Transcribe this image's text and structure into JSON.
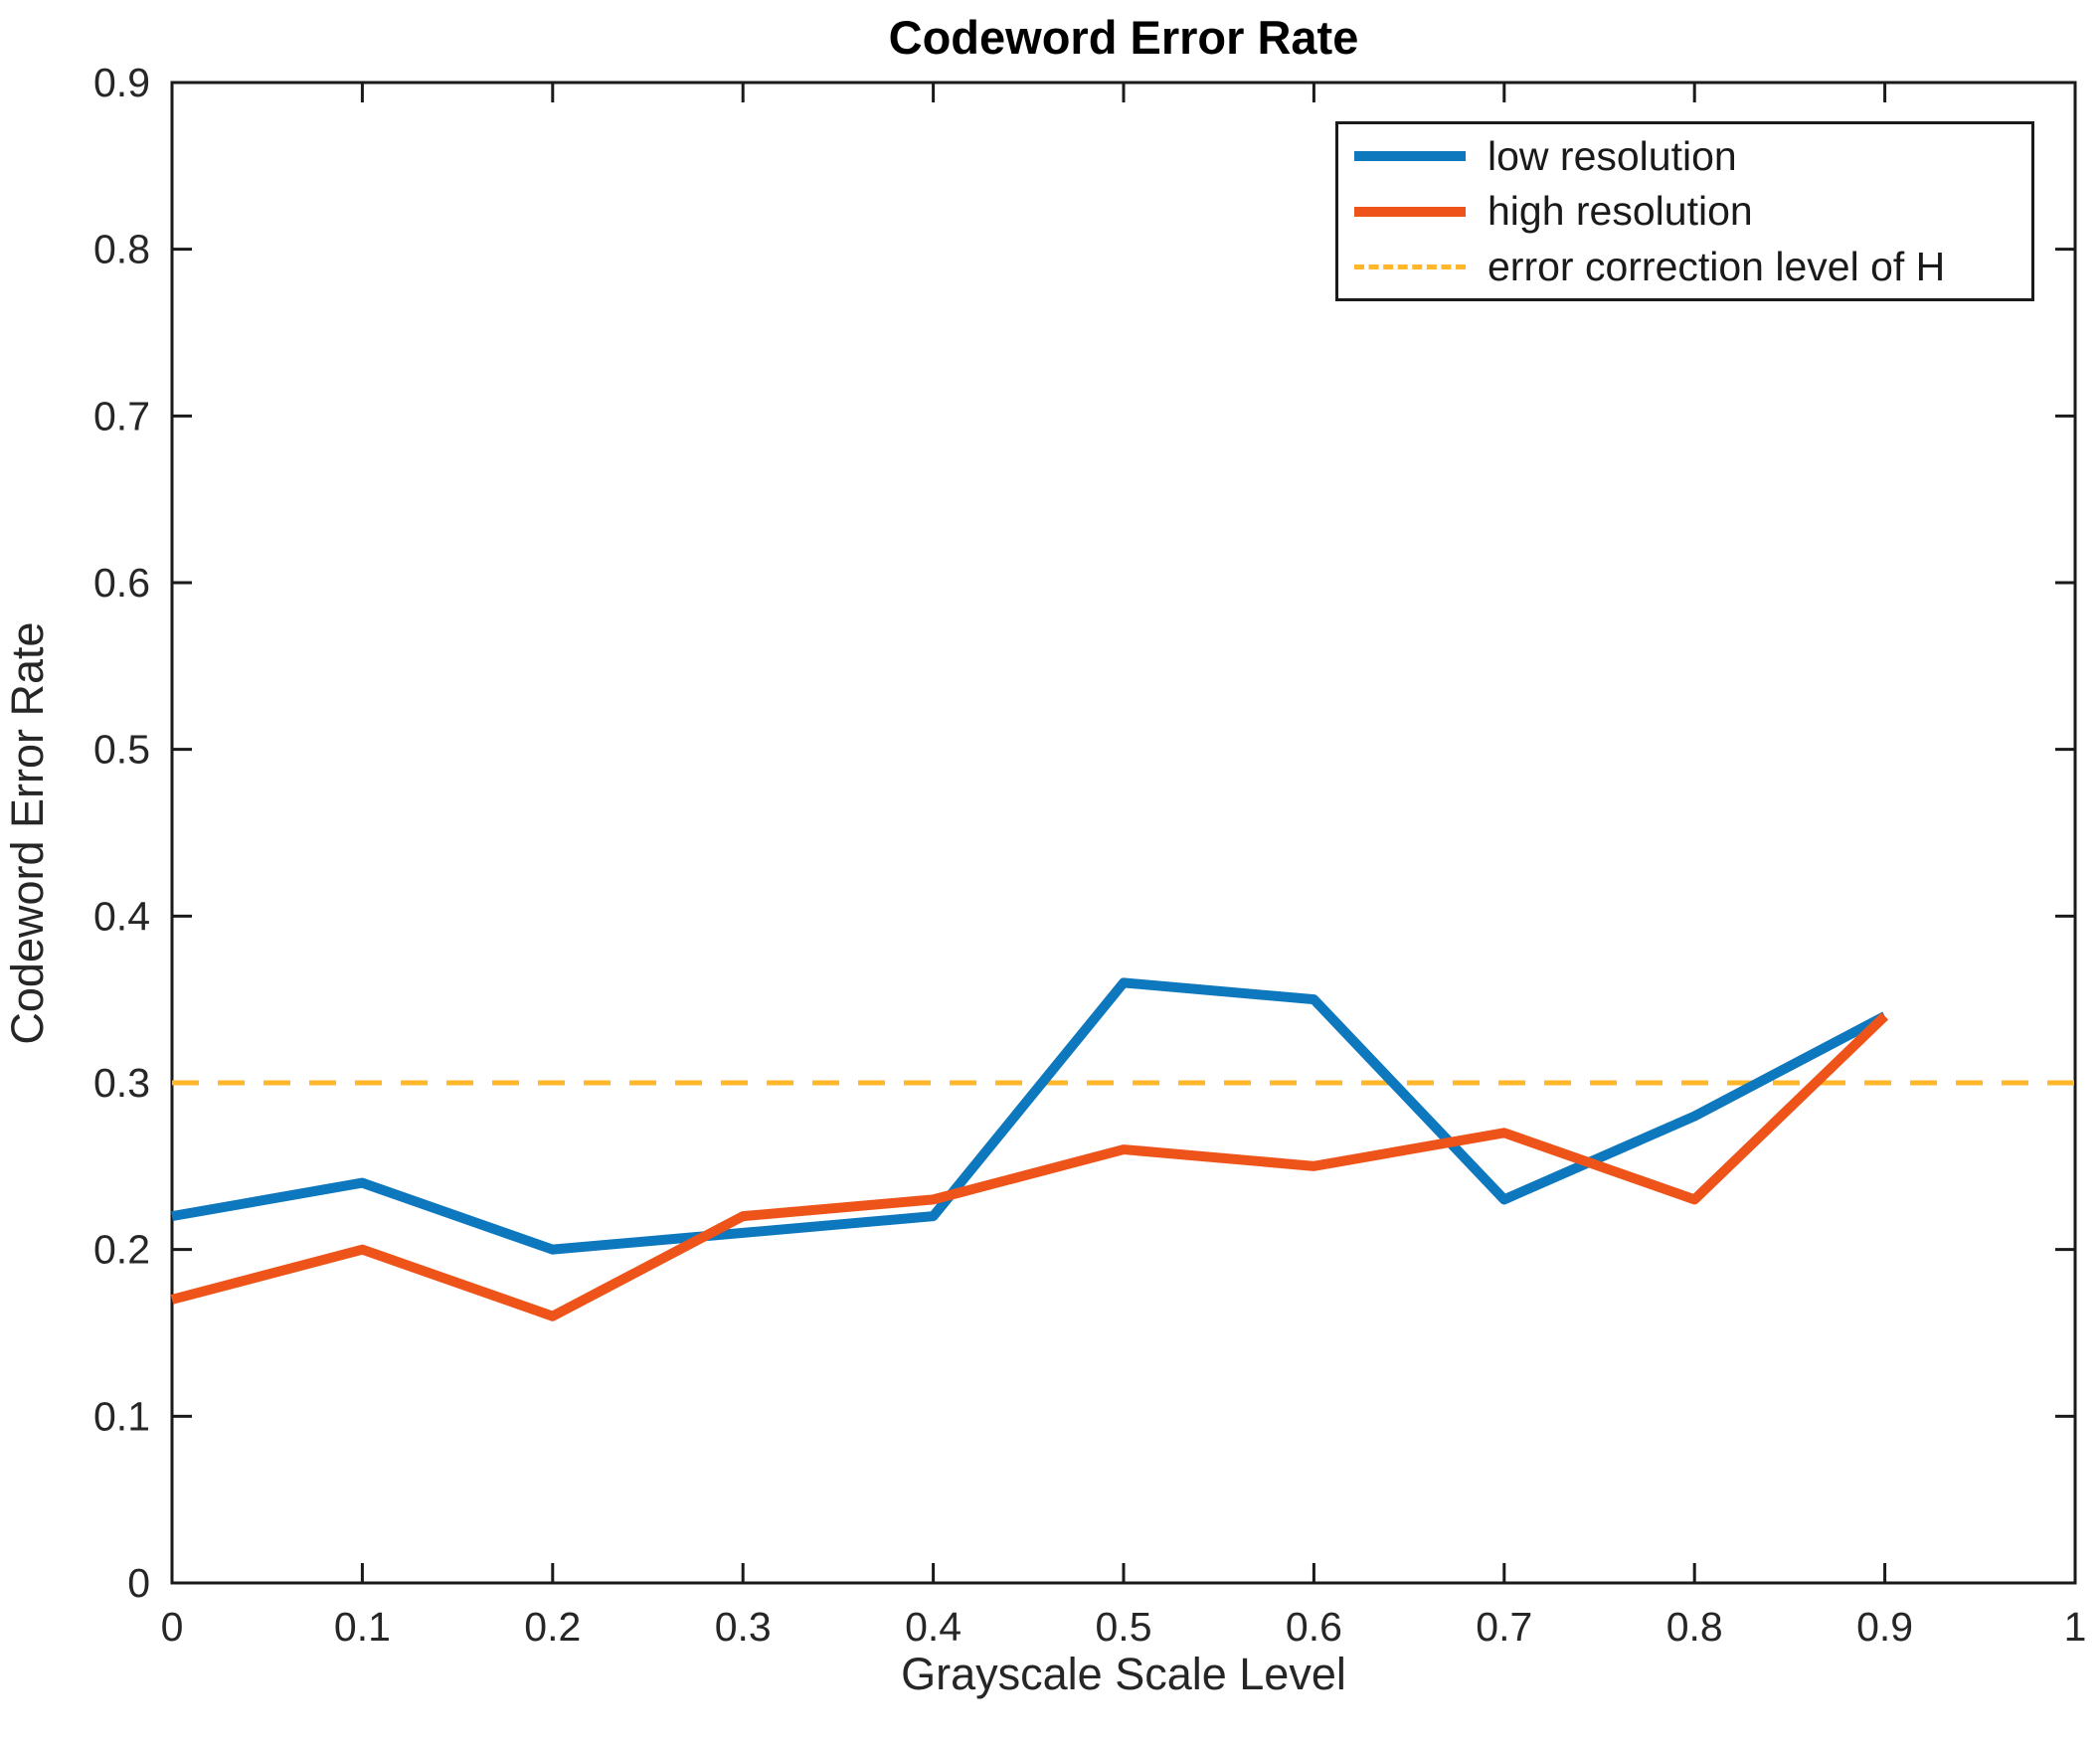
{
  "chart_data": {
    "type": "line",
    "title": "Codeword Error Rate",
    "xlabel": "Grayscale Scale Level",
    "ylabel": "Codeword Error Rate",
    "xlim": [
      0,
      1
    ],
    "ylim": [
      0,
      0.9
    ],
    "grid": false,
    "legend_position": "top-right",
    "x_ticks": [
      0,
      0.1,
      0.2,
      0.3,
      0.4,
      0.5,
      0.6,
      0.7,
      0.8,
      0.9,
      1
    ],
    "x_tick_labels": [
      "0",
      "0.1",
      "0.2",
      "0.3",
      "0.4",
      "0.5",
      "0.6",
      "0.7",
      "0.8",
      "0.9",
      "1"
    ],
    "y_ticks": [
      0,
      0.1,
      0.2,
      0.3,
      0.4,
      0.5,
      0.6,
      0.7,
      0.8,
      0.9
    ],
    "y_tick_labels": [
      "0",
      "0.1",
      "0.2",
      "0.3",
      "0.4",
      "0.5",
      "0.6",
      "0.7",
      "0.8",
      "0.9"
    ],
    "x": [
      0,
      0.1,
      0.2,
      0.3,
      0.4,
      0.5,
      0.6,
      0.7,
      0.8,
      0.9
    ],
    "series": [
      {
        "name": "low resolution",
        "color": "#0E78BE",
        "style": "solid",
        "width": 10,
        "values": [
          0.22,
          0.24,
          0.2,
          0.21,
          0.22,
          0.36,
          0.35,
          0.23,
          0.28,
          0.34
        ]
      },
      {
        "name": "high resolution",
        "color": "#EE5419",
        "style": "solid",
        "width": 10,
        "values": [
          0.17,
          0.2,
          0.16,
          0.22,
          0.23,
          0.26,
          0.25,
          0.27,
          0.23,
          0.34
        ]
      },
      {
        "name": "error correction level of H",
        "color": "#FFB628",
        "style": "dashed",
        "width": 5,
        "hline": 0.3
      }
    ],
    "axis_color": "#1a1a1a"
  }
}
